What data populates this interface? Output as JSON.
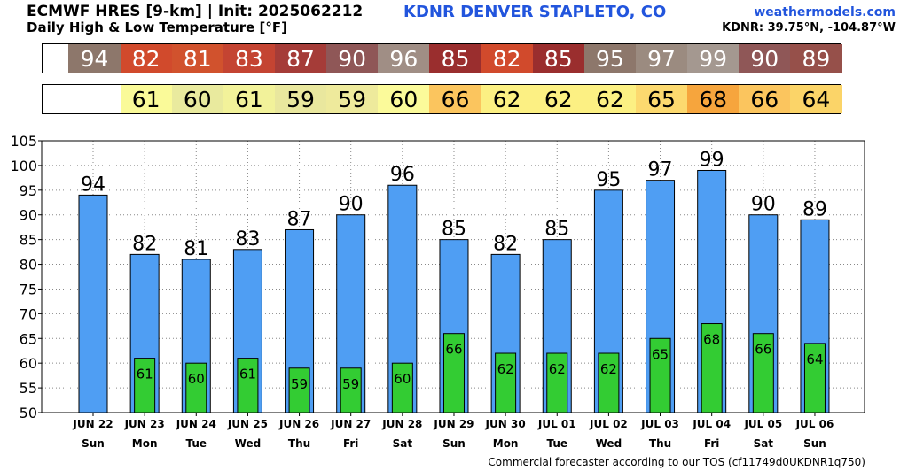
{
  "header": {
    "title": "ECMWF HRES [9-km] | Init: 2025062212",
    "subtitle": "Daily High & Low Temperature [°F]",
    "location": "KDNR DENVER STAPLETO, CO",
    "site": "weathermodels.com",
    "coords": "KDNR: 39.75°N, -104.87°W"
  },
  "footer": "Commercial forecaster according to our TOS (cf11749d0UKDNR1q750)",
  "colors": {
    "high_bar": "#4f9ef3",
    "low_bar": "#33cc33",
    "high_cells": [
      "#8d776b",
      "#d14a2c",
      "#d1522d",
      "#c44432",
      "#a53c38",
      "#8f5757",
      "#a08e85",
      "#9a2e2e",
      "#d14a2c",
      "#9a2e2e",
      "#8d776b",
      "#9b8b80",
      "#a49890",
      "#8f5757",
      "#96504a"
    ],
    "low_cells": [
      "#fafa99",
      "#e9ea9e",
      "#f2f29a",
      "#e9e79e",
      "#eeea9c",
      "#fbfa9a",
      "#fbc55e",
      "#fcf083",
      "#fcf083",
      "#fcf083",
      "#fcd96f",
      "#f6a53d",
      "#fbc55e",
      "#fbd468"
    ]
  },
  "chart_data": {
    "type": "bar",
    "categories": [
      "JUN 22",
      "JUN 23",
      "JUN 24",
      "JUN 25",
      "JUN 26",
      "JUN 27",
      "JUN 28",
      "JUN 29",
      "JUN 30",
      "JUL 01",
      "JUL 02",
      "JUL 03",
      "JUL 04",
      "JUL 05",
      "JUL 06"
    ],
    "weekdays": [
      "Sun",
      "Mon",
      "Tue",
      "Wed",
      "Thu",
      "Fri",
      "Sat",
      "Sun",
      "Mon",
      "Tue",
      "Wed",
      "Thu",
      "Fri",
      "Sat",
      "Sun"
    ],
    "series": [
      {
        "values": [
          94,
          82,
          81,
          83,
          87,
          90,
          96,
          85,
          82,
          85,
          95,
          97,
          99,
          90,
          89
        ]
      },
      {
        "values": [
          null,
          61,
          60,
          61,
          59,
          59,
          60,
          66,
          62,
          62,
          62,
          65,
          68,
          66,
          64
        ]
      }
    ],
    "ylim": [
      50,
      105
    ],
    "yticks": [
      50,
      55,
      60,
      65,
      70,
      75,
      80,
      85,
      90,
      95,
      100,
      105
    ],
    "grid": true
  }
}
